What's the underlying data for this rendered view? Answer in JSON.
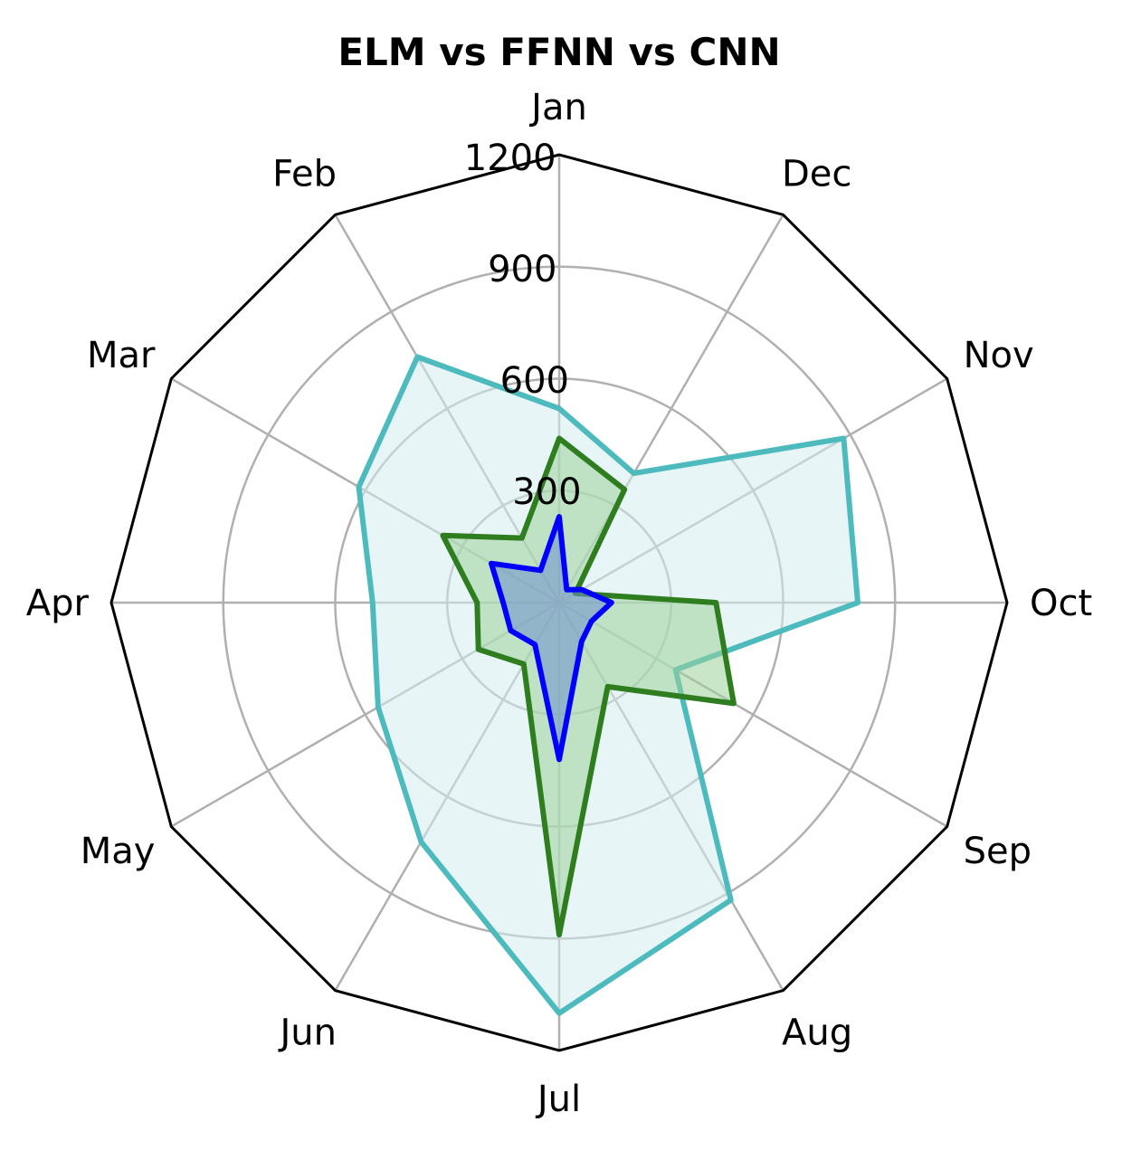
{
  "chart_data": {
    "type": "radar",
    "title": "ELM vs FFNN vs CNN",
    "categories": [
      "Jan",
      "Feb",
      "Mar",
      "Apr",
      "May",
      "Jun",
      "Jul",
      "Aug",
      "Sep",
      "Oct",
      "Nov",
      "Dec"
    ],
    "rlim": [
      0,
      1200
    ],
    "rticks": [
      300,
      600,
      900,
      1200
    ],
    "rtick_labels": [
      "300",
      "600",
      "900",
      "1200"
    ],
    "grid": true,
    "frame": "polygon",
    "series": [
      {
        "color": "#4dbbbe",
        "fill": "#d4ecee",
        "values": [
          520,
          760,
          620,
          500,
          560,
          740,
          1100,
          920,
          360,
          800,
          880,
          400
        ]
      },
      {
        "color": "#2e7d1e",
        "fill": "#9fd19a",
        "values": [
          440,
          200,
          360,
          220,
          250,
          190,
          890,
          260,
          540,
          420,
          50,
          350
        ]
      },
      {
        "color": "#0000ff",
        "fill": "#7090d0",
        "values": [
          230,
          100,
          210,
          150,
          150,
          130,
          420,
          120,
          100,
          140,
          70,
          40
        ]
      }
    ]
  }
}
